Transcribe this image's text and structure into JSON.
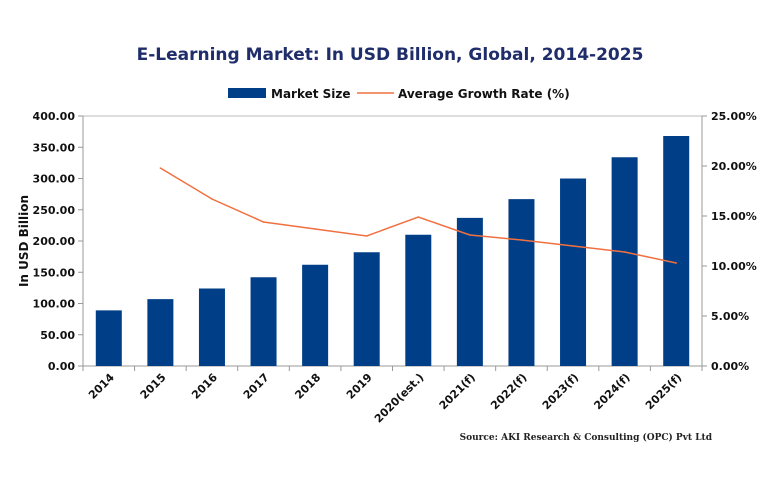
{
  "chart_data": {
    "type": "bar",
    "title": "E-Learning Market: In USD Billion, Global, 2014-2025",
    "ylabel": "In USD Billion",
    "y2label": "",
    "categories": [
      "2014",
      "2015",
      "2016",
      "2017",
      "2018",
      "2019",
      "2020(est.)",
      "2021(f)",
      "2022(f)",
      "2023(f)",
      "2024(f)",
      "2025(f)"
    ],
    "series": [
      {
        "name": "Market Size",
        "type": "bar",
        "axis": "left",
        "color": "#003f87",
        "values": [
          89,
          107,
          124,
          142,
          162,
          182,
          210,
          237,
          267,
          300,
          334,
          368
        ]
      },
      {
        "name": "Average Growth Rate (%)",
        "type": "line",
        "axis": "right",
        "color": "#f07040",
        "values": [
          null,
          19.8,
          16.7,
          14.4,
          13.7,
          13.0,
          14.9,
          13.1,
          12.6,
          12.0,
          11.4,
          10.3
        ]
      }
    ],
    "ylim": [
      0,
      400
    ],
    "yticks": [
      "0.00",
      "50.00",
      "100.00",
      "150.00",
      "200.00",
      "250.00",
      "300.00",
      "350.00",
      "400.00"
    ],
    "y2lim": [
      0,
      25
    ],
    "y2ticks": [
      "0.00%",
      "5.00%",
      "10.00%",
      "15.00%",
      "20.00%",
      "25.00%"
    ],
    "legend_position": "top",
    "grid": false,
    "source": "Source: AKI Research & Consulting (OPC) Pvt Ltd"
  }
}
